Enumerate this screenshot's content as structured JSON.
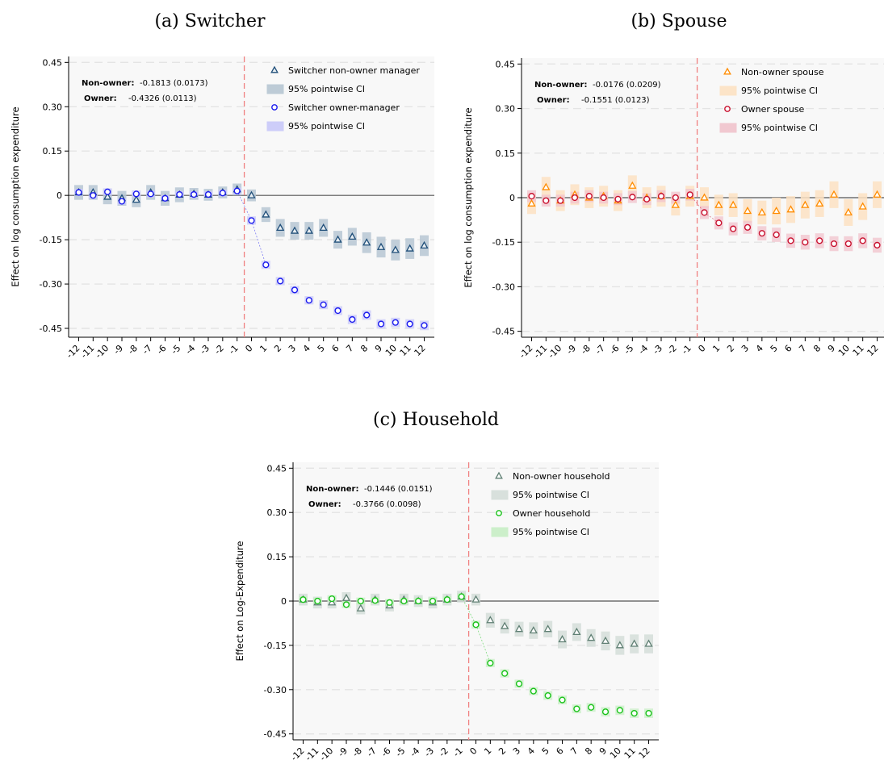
{
  "figure": {
    "domain": "Chart"
  },
  "chart_data": [
    {
      "type": "scatter",
      "title": "(a) Switcher",
      "ylabel": "Effect on log consumption expenditure",
      "xlabel": "",
      "x": [
        -12,
        -11,
        -10,
        -9,
        -8,
        -7,
        -6,
        -5,
        -4,
        -3,
        -2,
        -1,
        0,
        1,
        2,
        3,
        4,
        5,
        6,
        7,
        8,
        9,
        10,
        11,
        12
      ],
      "ylim": [
        -0.48,
        0.47
      ],
      "yticks": [
        0.45,
        0.3,
        0.15,
        0,
        -0.15,
        -0.3,
        -0.45
      ],
      "ytick_labels": [
        "0.45",
        "0.30",
        "0.15",
        "0",
        "-0.15",
        "-0.30",
        "-0.45"
      ],
      "event_line_x": -0.5,
      "legend_position": "top-right",
      "annotations": [
        {
          "label": "Non-owner:",
          "value": "-0.1813 (0.0173)"
        },
        {
          "label": "Owner:",
          "value": "-0.4326 (0.0113)"
        }
      ],
      "ci_label": "95% pointwise CI",
      "series": [
        {
          "name": "Switcher non-owner manager",
          "marker": "triangle",
          "color": "#1f4e79",
          "fill": "#e8eef2",
          "ci_fill": "#b7c7d3",
          "values": [
            0.01,
            0.01,
            -0.005,
            -0.01,
            -0.015,
            0.01,
            -0.01,
            0.002,
            0.005,
            0.002,
            0.01,
            0.02,
            0.0,
            -0.065,
            -0.11,
            -0.12,
            -0.12,
            -0.11,
            -0.15,
            -0.14,
            -0.16,
            -0.175,
            -0.185,
            -0.18,
            -0.17
          ],
          "ci_half": [
            0.025,
            0.025,
            0.025,
            0.025,
            0.025,
            0.025,
            0.025,
            0.025,
            0.02,
            0.02,
            0.02,
            0.02,
            0.02,
            0.025,
            0.03,
            0.03,
            0.03,
            0.03,
            0.03,
            0.03,
            0.035,
            0.035,
            0.035,
            0.035,
            0.035
          ]
        },
        {
          "name": "Switcher owner-manager",
          "marker": "circle",
          "color": "#1a1aee",
          "fill": "#ffffff",
          "ci_fill": "#c9c9fa",
          "values": [
            0.01,
            0.0,
            0.012,
            -0.02,
            0.005,
            0.005,
            -0.01,
            0.003,
            0.003,
            0.003,
            0.008,
            0.015,
            -0.085,
            -0.235,
            -0.29,
            -0.32,
            -0.355,
            -0.37,
            -0.39,
            -0.42,
            -0.405,
            -0.435,
            -0.43,
            -0.435,
            -0.44
          ],
          "ci_half": [
            0.012,
            0.012,
            0.012,
            0.012,
            0.012,
            0.012,
            0.012,
            0.012,
            0.012,
            0.012,
            0.012,
            0.012,
            0.014,
            0.014,
            0.014,
            0.014,
            0.014,
            0.015,
            0.015,
            0.016,
            0.016,
            0.016,
            0.016,
            0.016,
            0.016
          ]
        }
      ]
    },
    {
      "type": "scatter",
      "title": "(b) Spouse",
      "ylabel": "Effect on log consumption expenditure",
      "xlabel": "",
      "x": [
        -12,
        -11,
        -10,
        -9,
        -8,
        -7,
        -6,
        -5,
        -4,
        -3,
        -2,
        -1,
        0,
        1,
        2,
        3,
        4,
        5,
        6,
        7,
        8,
        9,
        10,
        11,
        12
      ],
      "ylim": [
        -0.47,
        0.47
      ],
      "yticks": [
        0.45,
        0.3,
        0.15,
        0,
        -0.15,
        -0.3,
        -0.45
      ],
      "ytick_labels": [
        "0.45",
        "0.30",
        "0.15",
        "0",
        "-0.15",
        "-0.30",
        "-0.45"
      ],
      "event_line_x": -0.5,
      "legend_position": "top-right",
      "annotations": [
        {
          "label": "Non-owner:",
          "value": "-0.0176 (0.0209)"
        },
        {
          "label": "Owner:",
          "value": "-0.1551 (0.0123)"
        }
      ],
      "ci_label": "95% pointwise CI",
      "series": [
        {
          "name": "Non-owner spouse",
          "marker": "triangle",
          "color": "#ff8c00",
          "fill": "#ffffff",
          "ci_fill": "#fde2c3",
          "values": [
            -0.02,
            0.035,
            -0.01,
            0.01,
            0.0,
            0.005,
            -0.01,
            0.04,
            0.0,
            0.005,
            -0.025,
            0.005,
            0.0,
            -0.025,
            -0.025,
            -0.045,
            -0.05,
            -0.045,
            -0.04,
            -0.025,
            -0.02,
            0.01,
            -0.05,
            -0.03,
            0.01
          ],
          "ci_half": [
            0.035,
            0.035,
            0.035,
            0.035,
            0.035,
            0.035,
            0.035,
            0.035,
            0.035,
            0.035,
            0.035,
            0.035,
            0.035,
            0.035,
            0.04,
            0.04,
            0.04,
            0.045,
            0.045,
            0.045,
            0.045,
            0.045,
            0.045,
            0.045,
            0.045
          ]
        },
        {
          "name": "Owner spouse",
          "marker": "circle",
          "color": "#c8102e",
          "fill": "#ffffff",
          "ci_fill": "#f1c3cc",
          "values": [
            0.005,
            -0.01,
            -0.01,
            0.0,
            0.005,
            0.0,
            -0.005,
            0.002,
            -0.005,
            0.005,
            0.0,
            0.01,
            -0.05,
            -0.085,
            -0.105,
            -0.1,
            -0.12,
            -0.125,
            -0.145,
            -0.15,
            -0.145,
            -0.155,
            -0.155,
            -0.145,
            -0.16
          ],
          "ci_half": [
            0.02,
            0.02,
            0.02,
            0.02,
            0.02,
            0.02,
            0.02,
            0.02,
            0.02,
            0.02,
            0.02,
            0.02,
            0.022,
            0.022,
            0.022,
            0.022,
            0.024,
            0.024,
            0.024,
            0.025,
            0.025,
            0.025,
            0.025,
            0.025,
            0.025
          ]
        }
      ]
    },
    {
      "type": "scatter",
      "title": "(c) Household",
      "ylabel": "Effect on Log-Expenditure",
      "xlabel": "",
      "x": [
        -12,
        -11,
        -10,
        -9,
        -8,
        -7,
        -6,
        -5,
        -4,
        -3,
        -2,
        -1,
        0,
        1,
        2,
        3,
        4,
        5,
        6,
        7,
        8,
        9,
        10,
        11,
        12
      ],
      "ylim": [
        -0.47,
        0.47
      ],
      "yticks": [
        0.45,
        0.3,
        0.15,
        0,
        -0.15,
        -0.3,
        -0.45
      ],
      "ytick_labels": [
        "0.45",
        "0.30",
        "0.15",
        "0",
        "-0.15",
        "-0.30",
        "-0.45"
      ],
      "event_line_x": -0.5,
      "legend_position": "top-right",
      "annotations": [
        {
          "label": "Non-owner:",
          "value": "-0.1446 (0.0151)"
        },
        {
          "label": "Owner:",
          "value": "-0.3766 (0.0098)"
        }
      ],
      "ci_label": "95% pointwise CI",
      "series": [
        {
          "name": "Non-owner household",
          "marker": "triangle",
          "color": "#5f7f73",
          "fill": "#ffffff",
          "ci_fill": "#d5ded9",
          "values": [
            0.005,
            -0.005,
            -0.005,
            0.01,
            -0.025,
            0.005,
            -0.015,
            0.005,
            0.0,
            -0.005,
            0.005,
            0.015,
            0.005,
            -0.065,
            -0.085,
            -0.095,
            -0.1,
            -0.095,
            -0.13,
            -0.105,
            -0.125,
            -0.135,
            -0.15,
            -0.145,
            -0.145
          ],
          "ci_half": [
            0.02,
            0.02,
            0.02,
            0.02,
            0.02,
            0.02,
            0.02,
            0.02,
            0.02,
            0.02,
            0.02,
            0.02,
            0.02,
            0.025,
            0.025,
            0.025,
            0.028,
            0.028,
            0.03,
            0.03,
            0.03,
            0.032,
            0.032,
            0.032,
            0.032
          ]
        },
        {
          "name": "Owner household",
          "marker": "circle",
          "color": "#19c219",
          "fill": "#ffffff",
          "ci_fill": "#c8efc6",
          "values": [
            0.005,
            0.0,
            0.008,
            -0.012,
            0.0,
            0.002,
            -0.005,
            0.0,
            0.0,
            0.0,
            0.005,
            0.015,
            -0.08,
            -0.21,
            -0.245,
            -0.28,
            -0.305,
            -0.32,
            -0.335,
            -0.365,
            -0.36,
            -0.375,
            -0.37,
            -0.38,
            -0.38
          ],
          "ci_half": [
            0.012,
            0.012,
            0.012,
            0.012,
            0.012,
            0.012,
            0.012,
            0.012,
            0.012,
            0.012,
            0.012,
            0.012,
            0.014,
            0.014,
            0.014,
            0.014,
            0.014,
            0.015,
            0.015,
            0.015,
            0.015,
            0.016,
            0.016,
            0.016,
            0.016
          ]
        }
      ]
    }
  ]
}
